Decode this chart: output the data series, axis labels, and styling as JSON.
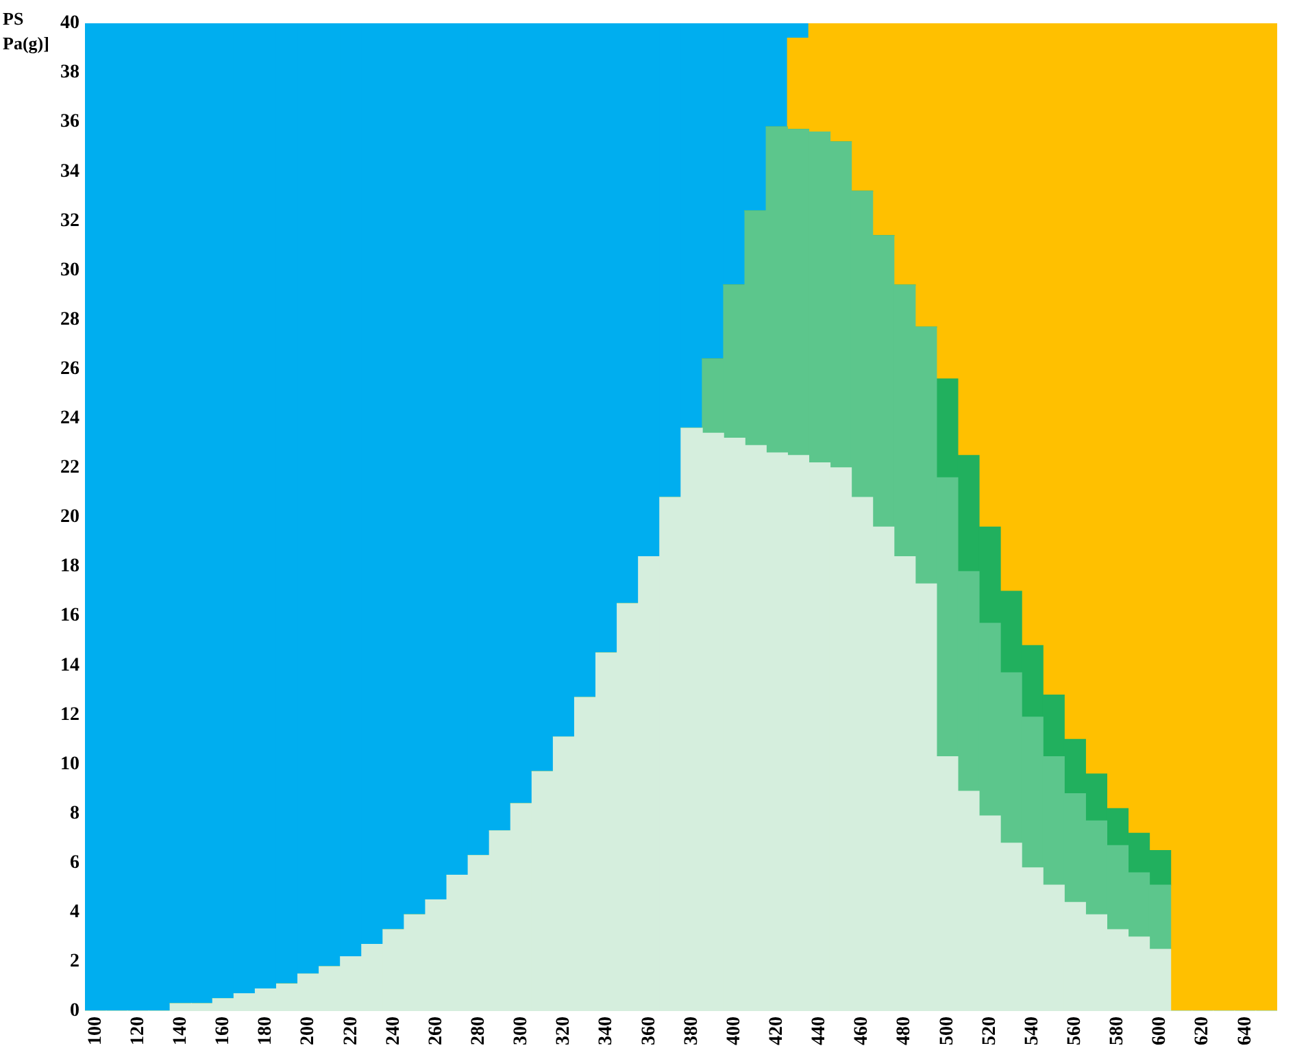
{
  "chart_data": {
    "type": "bar",
    "stacked": true,
    "ylabel": "PS\nPa(g)]",
    "categories": [
      "100",
      null,
      "120",
      null,
      "140",
      null,
      "160",
      null,
      "180",
      null,
      "200",
      null,
      "220",
      null,
      "240",
      null,
      "260",
      null,
      "280",
      null,
      "300",
      null,
      "320",
      null,
      "340",
      null,
      "360",
      null,
      "380",
      null,
      "400",
      null,
      "420",
      null,
      "440",
      null,
      "460",
      null,
      "480",
      null,
      "500",
      null,
      "520",
      null,
      "540",
      null,
      "560",
      null,
      "580",
      null,
      "600",
      null,
      "620",
      null,
      "640",
      null
    ],
    "series": [
      {
        "color": "#d5eedd",
        "values": [
          0,
          0,
          0,
          0,
          0.3,
          0.3,
          0.5,
          0.7,
          0.9,
          1.1,
          1.5,
          1.8,
          2.2,
          2.7,
          3.3,
          3.9,
          4.5,
          5.5,
          6.3,
          7.3,
          8.4,
          9.7,
          11.1,
          12.7,
          14.5,
          16.5,
          18.4,
          20.8,
          23.6,
          23.4,
          23.2,
          22.9,
          22.6,
          22.5,
          22.2,
          22.0,
          20.8,
          19.6,
          18.4,
          17.3,
          10.3,
          8.9,
          7.9,
          6.8,
          5.8,
          5.1,
          4.4,
          3.9,
          3.3,
          3.0,
          2.5,
          0,
          0,
          0,
          0,
          0
        ]
      },
      {
        "color": "#5cc68c",
        "values": [
          0,
          0,
          0,
          0,
          0,
          0,
          0,
          0,
          0,
          0,
          0,
          0,
          0,
          0,
          0,
          0,
          0,
          0,
          0,
          0,
          0,
          0,
          0,
          0,
          0,
          0,
          0,
          0,
          0,
          3.0,
          6.2,
          9.5,
          13.2,
          13.2,
          13.4,
          13.2,
          12.4,
          11.8,
          11.0,
          10.4,
          11.3,
          8.9,
          7.8,
          6.9,
          6.1,
          5.2,
          4.4,
          3.8,
          3.4,
          2.6,
          2.6,
          0,
          0,
          0,
          0,
          0
        ]
      },
      {
        "color": "#21b05e",
        "values": [
          0,
          0,
          0,
          0,
          0,
          0,
          0,
          0,
          0,
          0,
          0,
          0,
          0,
          0,
          0,
          0,
          0,
          0,
          0,
          0,
          0,
          0,
          0,
          0,
          0,
          0,
          0,
          0,
          0,
          0,
          0,
          0,
          0,
          0,
          0,
          0,
          0,
          0,
          0,
          0,
          4.0,
          4.7,
          3.9,
          3.3,
          2.9,
          2.5,
          2.2,
          1.9,
          1.5,
          1.6,
          1.4,
          0,
          0,
          0,
          0,
          0
        ]
      },
      {
        "color": "#ffc000",
        "values": [
          0,
          0,
          0,
          0,
          0,
          0,
          0,
          0,
          0,
          0,
          0,
          0,
          0,
          0,
          0,
          0,
          0,
          0,
          0,
          0,
          0,
          0,
          0,
          0,
          0,
          0,
          0,
          0,
          0,
          0,
          0,
          0,
          0,
          3.7,
          4.4,
          4.8,
          6.8,
          8.6,
          10.6,
          12.3,
          14.4,
          17.5,
          20.4,
          23.0,
          25.2,
          27.2,
          29.0,
          30.4,
          31.8,
          32.8,
          33.5,
          40,
          40,
          40,
          40,
          40
        ]
      },
      {
        "color": "#00aeef",
        "values": [
          40,
          40,
          40,
          40,
          39.7,
          39.7,
          39.5,
          39.3,
          39.1,
          38.9,
          38.5,
          38.2,
          37.8,
          37.3,
          36.7,
          36.1,
          35.5,
          34.5,
          33.7,
          32.7,
          31.6,
          30.3,
          28.9,
          27.3,
          25.5,
          23.5,
          21.6,
          19.2,
          16.4,
          13.6,
          10.6,
          7.6,
          4.2,
          0.6,
          0,
          0,
          0,
          0,
          0,
          0,
          0,
          0,
          0,
          0,
          0,
          0,
          0,
          0,
          0,
          0,
          0,
          0,
          0,
          0,
          0,
          0
        ]
      }
    ],
    "ylim": [
      0,
      40
    ],
    "yticks": [
      0,
      2,
      4,
      6,
      8,
      10,
      12,
      14,
      16,
      18,
      20,
      22,
      24,
      26,
      28,
      30,
      32,
      34,
      36,
      38,
      40
    ],
    "grid": false,
    "legend": false
  }
}
